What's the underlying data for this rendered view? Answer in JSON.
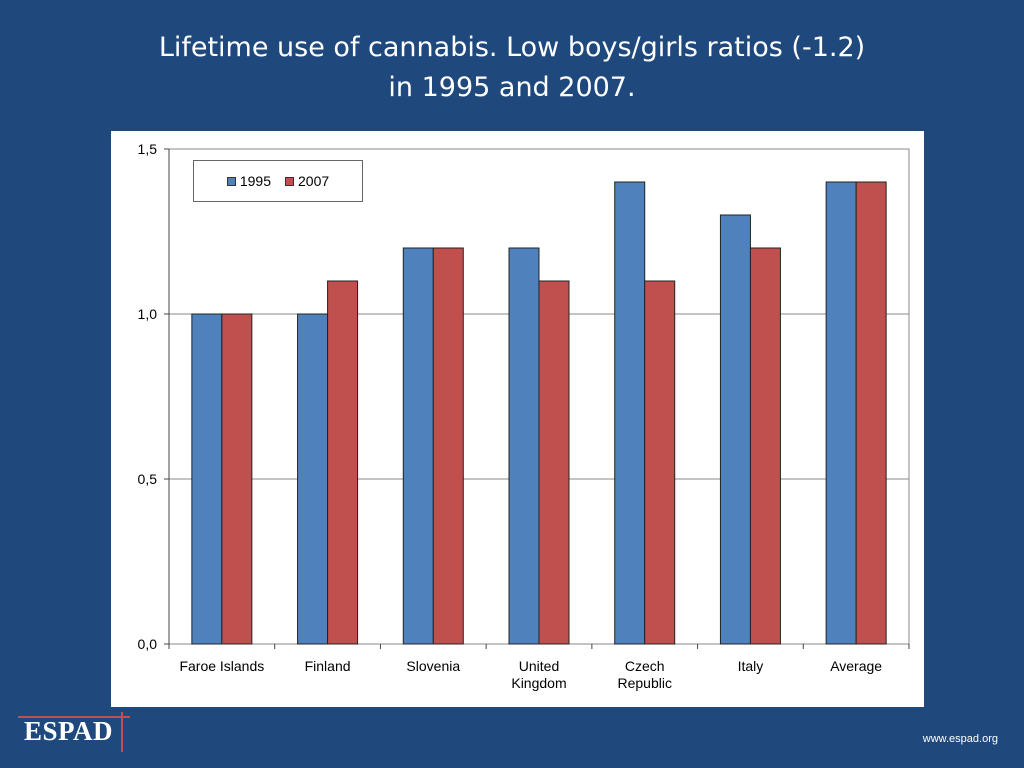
{
  "slide": {
    "title_line1": "Lifetime use of cannabis. Low boys/girls ratios (-1.2)",
    "title_line2": "in 1995 and 2007.",
    "logo_text": "ESPAD",
    "footer_url": "www.espad.org"
  },
  "colors": {
    "background": "#1f497d",
    "series_1995": "#4f81bd",
    "series_2007": "#c0504d"
  },
  "chart_data": {
    "type": "bar",
    "title": "",
    "xlabel": "",
    "ylabel": "",
    "categories": [
      [
        "Faroe Islands"
      ],
      [
        "Finland"
      ],
      [
        "Slovenia"
      ],
      [
        "United",
        "Kingdom"
      ],
      [
        "Czech",
        "Republic"
      ],
      [
        "Italy"
      ],
      [
        "Average"
      ]
    ],
    "series": [
      {
        "name": "1995",
        "color": "#4f81bd",
        "values": [
          1.0,
          1.0,
          1.2,
          1.2,
          1.4,
          1.3,
          1.4
        ]
      },
      {
        "name": "2007",
        "color": "#c0504d",
        "values": [
          1.0,
          1.1,
          1.2,
          1.1,
          1.1,
          1.2,
          1.4
        ]
      }
    ],
    "ylim": [
      0,
      1.5
    ],
    "yticks": [
      0,
      0.5,
      1.0,
      1.5
    ],
    "ytick_labels": [
      "0,0",
      "0,5",
      "1,0",
      "1,5"
    ],
    "grid": true,
    "legend_position": "top-left"
  }
}
